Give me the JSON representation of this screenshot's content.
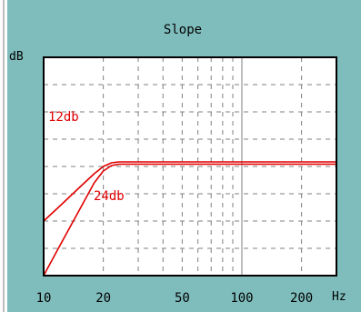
{
  "chart_data": {
    "type": "line",
    "title": "Slope",
    "ylabel": "dB",
    "xlabel": "Hz",
    "x_scale": "log",
    "xlim": [
      10,
      300
    ],
    "ylim": [
      -42,
      6
    ],
    "x_ticks": [
      10,
      20,
      50,
      100,
      200
    ],
    "grid": true,
    "colors": {
      "panel": "#7fbdbd",
      "plot_bg": "#ffffff",
      "grid": "#808080",
      "curve": "#e00000"
    },
    "annotations": [
      "12db",
      "24db"
    ],
    "series": [
      {
        "name": "12db",
        "x": [
          10,
          12,
          15,
          18,
          20,
          22,
          24,
          26,
          30,
          50,
          100,
          300
        ],
        "y": [
          -30,
          -26.8,
          -22.8,
          -19.6,
          -18,
          -17.2,
          -17,
          -17,
          -17,
          -17,
          -17,
          -17
        ]
      },
      {
        "name": "24db",
        "x": [
          10,
          12,
          15,
          18,
          20,
          22,
          24,
          26,
          30,
          50,
          100,
          300
        ],
        "y": [
          -42,
          -35.6,
          -27.9,
          -21.6,
          -19,
          -17.8,
          -17.5,
          -17.5,
          -17.5,
          -17.5,
          -17.5,
          -17.5
        ]
      }
    ]
  }
}
